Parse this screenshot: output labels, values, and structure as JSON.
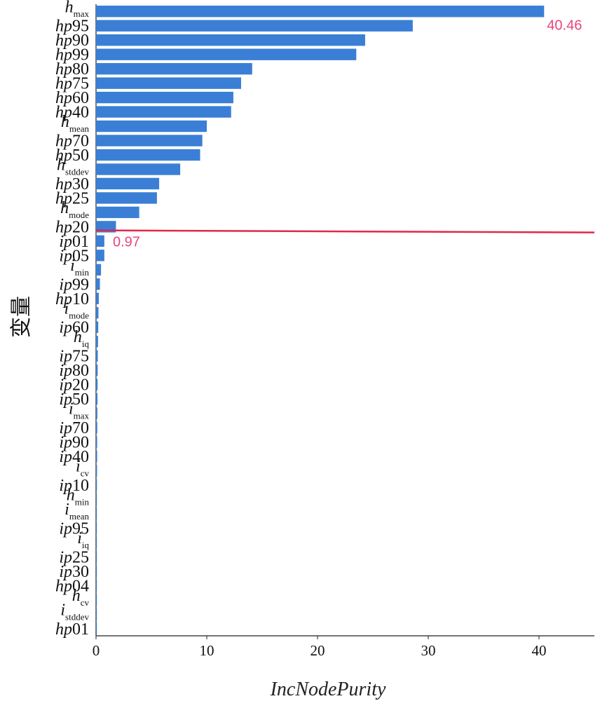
{
  "chart_data": {
    "type": "bar",
    "orientation": "horizontal",
    "xlabel": "IncNodePurity",
    "ylabel": "变量",
    "xlim": [
      0,
      45
    ],
    "xticks": [
      0,
      10,
      20,
      30,
      40
    ],
    "bar_color": "#3a7fd5",
    "annotation_color": "#e8457a",
    "threshold_line": {
      "value_label": "0.97",
      "color": "#e0284a"
    },
    "max_label": "40.46",
    "categories": [
      {
        "base": "h",
        "sub": "max"
      },
      {
        "base": "hp",
        "sub": "",
        "num": "95"
      },
      {
        "base": "hp",
        "sub": "",
        "num": "90"
      },
      {
        "base": "hp",
        "sub": "",
        "num": "99"
      },
      {
        "base": "hp",
        "sub": "",
        "num": "80"
      },
      {
        "base": "hp",
        "sub": "",
        "num": "75"
      },
      {
        "base": "hp",
        "sub": "",
        "num": "60"
      },
      {
        "base": "hp",
        "sub": "",
        "num": "40"
      },
      {
        "base": "h",
        "sub": "mean"
      },
      {
        "base": "hp",
        "sub": "",
        "num": "70"
      },
      {
        "base": "hp",
        "sub": "",
        "num": "50"
      },
      {
        "base": "h",
        "sub": "stddev"
      },
      {
        "base": "hp",
        "sub": "",
        "num": "30"
      },
      {
        "base": "hp",
        "sub": "",
        "num": "25"
      },
      {
        "base": "h",
        "sub": "mode"
      },
      {
        "base": "hp",
        "sub": "",
        "num": "20"
      },
      {
        "base": "ip",
        "sub": "",
        "num": "01"
      },
      {
        "base": "ip",
        "sub": "",
        "num": "05"
      },
      {
        "base": "i",
        "sub": "min"
      },
      {
        "base": "ip",
        "sub": "",
        "num": "99"
      },
      {
        "base": "hp",
        "sub": "",
        "num": "10"
      },
      {
        "base": "i",
        "sub": "mode"
      },
      {
        "base": "ip",
        "sub": "",
        "num": "60"
      },
      {
        "base": "h",
        "sub": "iq"
      },
      {
        "base": "ip",
        "sub": "",
        "num": "75"
      },
      {
        "base": "ip",
        "sub": "",
        "num": "80"
      },
      {
        "base": "ip",
        "sub": "",
        "num": "20"
      },
      {
        "base": "ip",
        "sub": "",
        "num": "50"
      },
      {
        "base": "i",
        "sub": "max"
      },
      {
        "base": "ip",
        "sub": "",
        "num": "70"
      },
      {
        "base": "ip",
        "sub": "",
        "num": "90"
      },
      {
        "base": "ip",
        "sub": "",
        "num": "40"
      },
      {
        "base": "i",
        "sub": "cv"
      },
      {
        "base": "ip",
        "sub": "",
        "num": "10"
      },
      {
        "base": "h",
        "sub": "min"
      },
      {
        "base": "i",
        "sub": "mean"
      },
      {
        "base": "ip",
        "sub": "",
        "num": "95"
      },
      {
        "base": "i",
        "sub": "iq"
      },
      {
        "base": "ip",
        "sub": "",
        "num": "25"
      },
      {
        "base": "ip",
        "sub": "",
        "num": "30"
      },
      {
        "base": "hp",
        "sub": "",
        "num": "04"
      },
      {
        "base": "h",
        "sub": "cv"
      },
      {
        "base": "i",
        "sub": "stddev"
      },
      {
        "base": "hp",
        "sub": "",
        "num": "01"
      }
    ],
    "values": [
      40.46,
      28.6,
      24.3,
      23.5,
      14.1,
      13.1,
      12.4,
      12.2,
      10.0,
      9.6,
      9.4,
      7.6,
      5.7,
      5.5,
      3.9,
      1.8,
      0.75,
      0.75,
      0.45,
      0.35,
      0.25,
      0.22,
      0.2,
      0.18,
      0.16,
      0.15,
      0.14,
      0.13,
      0.12,
      0.11,
      0.1,
      0.1,
      0.09,
      0.08,
      0.07,
      0.07,
      0.06,
      0.06,
      0.05,
      0.05,
      0.04,
      0.04,
      0.03,
      0.03
    ]
  }
}
